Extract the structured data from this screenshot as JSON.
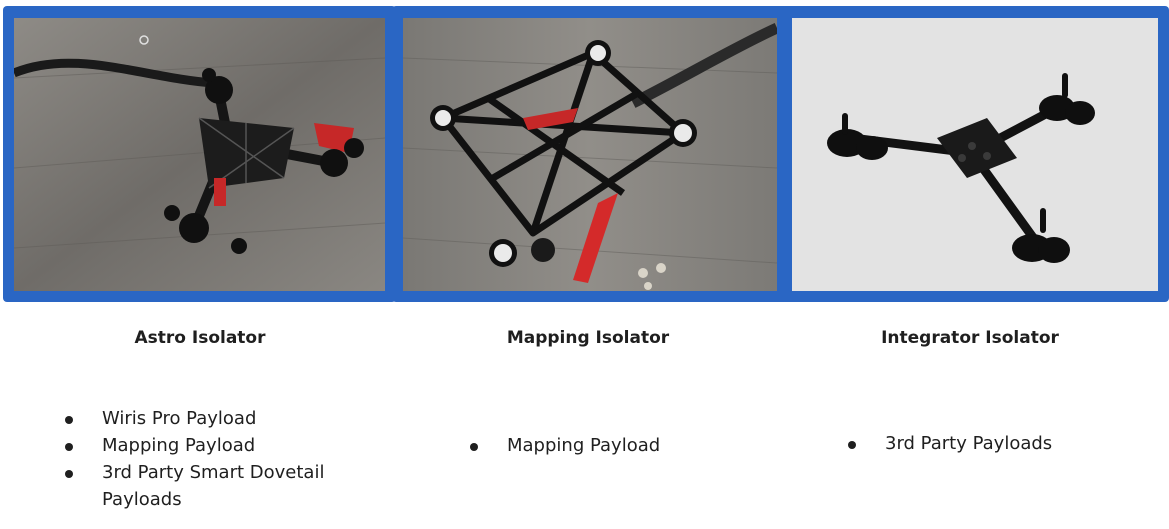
{
  "panels": [
    {
      "image_alt": "astro-isolator-photo",
      "caption": "Astro Isolator",
      "bullets": [
        "Wiris Pro Payload",
        "Mapping Payload",
        "3rd Party Smart Dovetail Payloads"
      ]
    },
    {
      "image_alt": "mapping-isolator-photo",
      "caption": "Mapping Isolator",
      "bullets": [
        "Mapping Payload"
      ]
    },
    {
      "image_alt": "integrator-isolator-photo",
      "caption": "Integrator Isolator",
      "bullets": [
        "3rd Party Payloads"
      ]
    }
  ],
  "colors": {
    "frame": "#2a66c4",
    "text": "#1f1f1f",
    "accent_red": "#d42a2a"
  }
}
